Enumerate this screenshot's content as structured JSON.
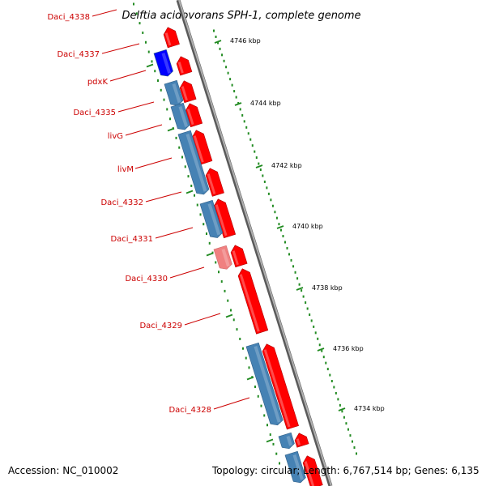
{
  "title": "Delftia acidovorans SPH-1, complete genome",
  "colors": {
    "forward_gene": "#ff0000",
    "forward_gene_light": "#f08080",
    "reverse_gene": "#4682b4",
    "reverse_gene_highlight": "#0000ff",
    "backbone": "#8c8c8c",
    "label": "#cc0000",
    "tick": "#228b22"
  },
  "gene_labels": [
    "Daci_4338",
    "Daci_4337",
    "pdxK",
    "Daci_4335",
    "livG",
    "livM",
    "Daci_4332",
    "Daci_4331",
    "Daci_4330",
    "Daci_4329",
    "Daci_4328"
  ],
  "ruler_labels": [
    "4746 kbp",
    "4744 kbp",
    "4742 kbp",
    "4740 kbp",
    "4738 kbp",
    "4736 kbp",
    "4734 kbp"
  ],
  "footer": {
    "accession": "Accession: NC_010002",
    "topology": "Topology: circular; Length: 6,767,514 bp; Genes: 6,135"
  }
}
